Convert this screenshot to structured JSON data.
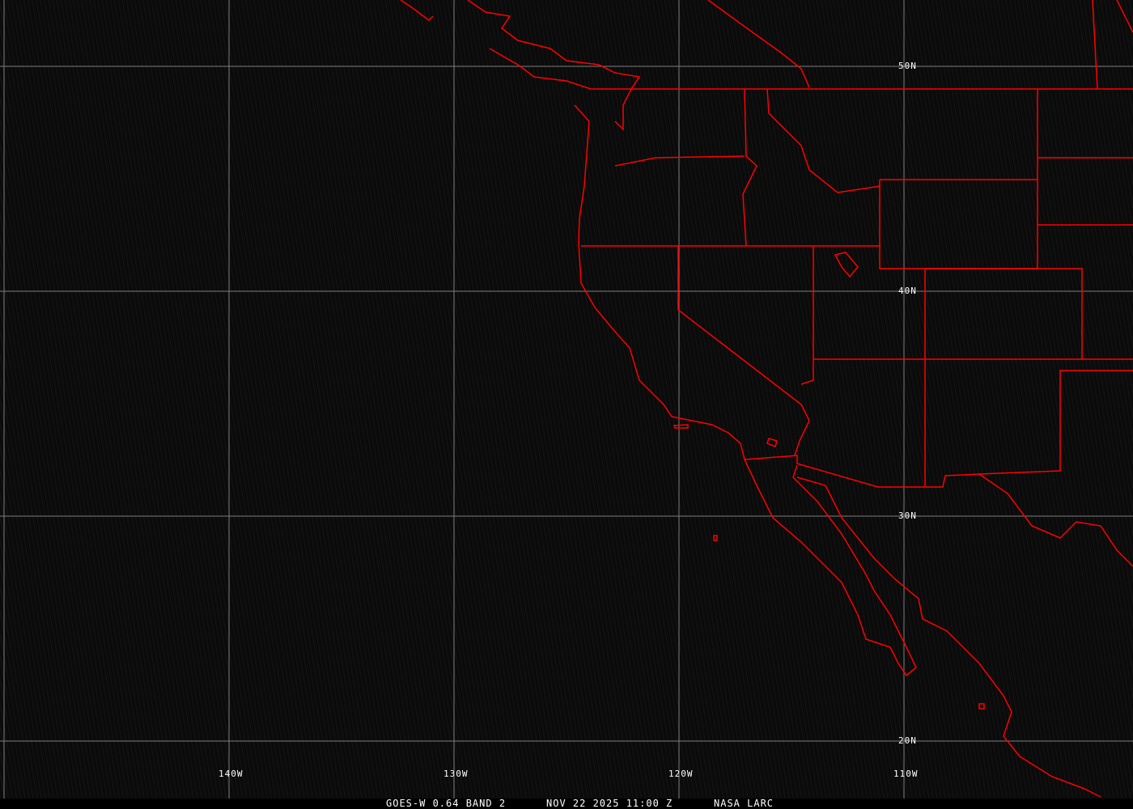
{
  "map": {
    "product": "GOES-W 0.64 BAND 2",
    "datetime": "NOV 22 2025 11:00 Z",
    "source": "NASA LARC",
    "latitude_labels": [
      "50N",
      "40N",
      "30N",
      "20N"
    ],
    "longitude_labels": [
      "140W",
      "130W",
      "120W",
      "110W"
    ],
    "colors": {
      "borders": "#ff0000",
      "grid": "#9a9a9a",
      "background": "#0b0b0b",
      "text": "#ffffff"
    }
  }
}
